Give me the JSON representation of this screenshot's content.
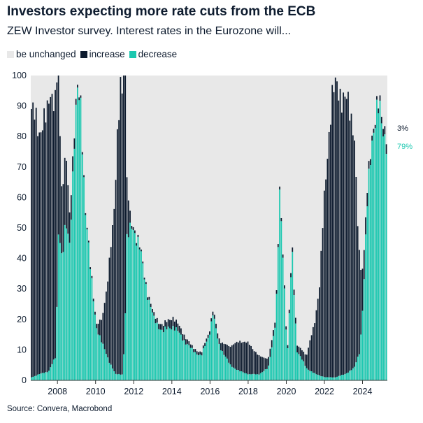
{
  "chart_data": {
    "type": "bar",
    "stacked": true,
    "title": "Investors expecting more rate cuts from the ECB",
    "subtitle": "ZEW Investor survey. Interest rates in the Eurozone will...",
    "source": "Source: Convera, Macrobond",
    "xlabel": "",
    "ylabel": "",
    "ylim": [
      0,
      100
    ],
    "xlim": [
      2006.6,
      2025.3
    ],
    "yticks": [
      "0",
      "10",
      "20",
      "30",
      "40",
      "50",
      "60",
      "70",
      "80",
      "90",
      "100"
    ],
    "xticks": [
      "2008",
      "2010",
      "2012",
      "2014",
      "2016",
      "2018",
      "2020",
      "2022",
      "2024"
    ],
    "series": [
      {
        "name": "be unchanged",
        "color": "#e8e8e8"
      },
      {
        "name": "increase",
        "color": "#0d1b2e"
      },
      {
        "name": "decrease",
        "color": "#1cc8b0"
      }
    ],
    "increase_anchors": [
      [
        2006.6,
        88
      ],
      [
        2006.75,
        84
      ],
      [
        2007.0,
        80
      ],
      [
        2007.2,
        84
      ],
      [
        2007.4,
        82
      ],
      [
        2007.6,
        90
      ],
      [
        2007.8,
        88
      ],
      [
        2007.9,
        85
      ],
      [
        2008.05,
        40
      ],
      [
        2008.2,
        20
      ],
      [
        2008.4,
        25
      ],
      [
        2008.6,
        10
      ],
      [
        2008.8,
        4
      ],
      [
        2009.0,
        1
      ],
      [
        2009.5,
        0.5
      ],
      [
        2010.0,
        1
      ],
      [
        2010.3,
        8
      ],
      [
        2010.6,
        25
      ],
      [
        2010.9,
        50
      ],
      [
        2011.1,
        80
      ],
      [
        2011.25,
        92
      ],
      [
        2011.5,
        88
      ],
      [
        2011.6,
        20
      ],
      [
        2011.8,
        1
      ],
      [
        2012.5,
        0.5
      ],
      [
        2013.5,
        2
      ],
      [
        2014.0,
        3
      ],
      [
        2015.0,
        1
      ],
      [
        2016.0,
        1
      ],
      [
        2016.5,
        2
      ],
      [
        2017.0,
        6
      ],
      [
        2017.5,
        10
      ],
      [
        2018.0,
        10
      ],
      [
        2018.5,
        6
      ],
      [
        2019.0,
        3
      ],
      [
        2019.5,
        1
      ],
      [
        2020.0,
        1
      ],
      [
        2020.5,
        2
      ],
      [
        2021.0,
        4
      ],
      [
        2021.4,
        16
      ],
      [
        2021.7,
        30
      ],
      [
        2021.9,
        55
      ],
      [
        2022.1,
        75
      ],
      [
        2022.3,
        90
      ],
      [
        2022.5,
        94
      ],
      [
        2022.7,
        95
      ],
      [
        2022.9,
        92
      ],
      [
        2023.1,
        88
      ],
      [
        2023.3,
        84
      ],
      [
        2023.5,
        80
      ],
      [
        2023.7,
        40
      ],
      [
        2023.9,
        15
      ],
      [
        2024.1,
        6
      ],
      [
        2024.3,
        2
      ],
      [
        2024.6,
        1
      ],
      [
        2025.2,
        3
      ]
    ],
    "decrease_anchors": [
      [
        2006.6,
        1
      ],
      [
        2007.0,
        2
      ],
      [
        2007.5,
        3
      ],
      [
        2007.9,
        8
      ],
      [
        2008.0,
        55
      ],
      [
        2008.2,
        40
      ],
      [
        2008.4,
        50
      ],
      [
        2008.6,
        45
      ],
      [
        2008.85,
        80
      ],
      [
        2009.0,
        93
      ],
      [
        2009.2,
        88
      ],
      [
        2009.4,
        60
      ],
      [
        2009.7,
        35
      ],
      [
        2010.0,
        18
      ],
      [
        2010.3,
        12
      ],
      [
        2010.7,
        6
      ],
      [
        2011.0,
        2
      ],
      [
        2011.4,
        2
      ],
      [
        2011.6,
        45
      ],
      [
        2011.9,
        52
      ],
      [
        2012.3,
        42
      ],
      [
        2012.7,
        28
      ],
      [
        2013.0,
        20
      ],
      [
        2013.5,
        16
      ],
      [
        2014.0,
        18
      ],
      [
        2014.5,
        14
      ],
      [
        2015.0,
        10
      ],
      [
        2015.5,
        8
      ],
      [
        2015.9,
        15
      ],
      [
        2016.1,
        22
      ],
      [
        2016.4,
        12
      ],
      [
        2017.0,
        5
      ],
      [
        2017.5,
        3
      ],
      [
        2018.0,
        2
      ],
      [
        2018.5,
        2
      ],
      [
        2019.0,
        4
      ],
      [
        2019.4,
        20
      ],
      [
        2019.6,
        60
      ],
      [
        2019.75,
        45
      ],
      [
        2020.0,
        8
      ],
      [
        2020.25,
        42
      ],
      [
        2020.5,
        10
      ],
      [
        2021.0,
        4
      ],
      [
        2021.5,
        2
      ],
      [
        2022.0,
        1
      ],
      [
        2022.5,
        1
      ],
      [
        2023.0,
        2
      ],
      [
        2023.5,
        4
      ],
      [
        2023.8,
        10
      ],
      [
        2024.0,
        30
      ],
      [
        2024.2,
        60
      ],
      [
        2024.4,
        80
      ],
      [
        2024.6,
        85
      ],
      [
        2024.8,
        88
      ],
      [
        2025.0,
        84
      ],
      [
        2025.2,
        79
      ]
    ],
    "annotations": {
      "increase_last": "3%",
      "decrease_last": "79%"
    }
  }
}
